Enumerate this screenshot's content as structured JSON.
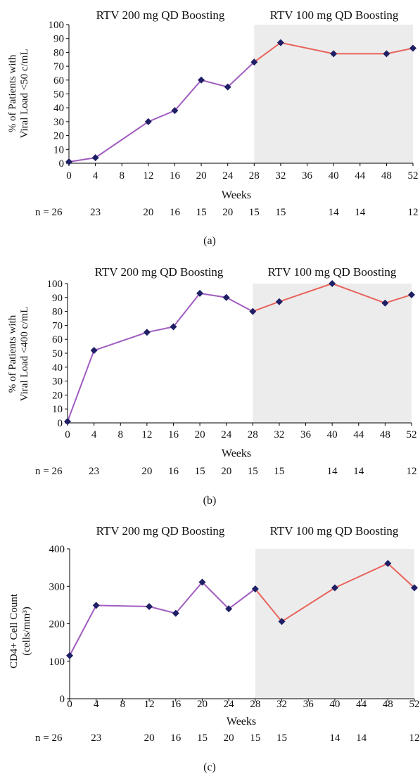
{
  "phases": {
    "first": "RTV 200 mg QD Boosting",
    "second": "RTV 100 mg QD Boosting"
  },
  "colors": {
    "phase1_line": "#a05cc0",
    "phase2_line": "#e8645c",
    "marker": "#1f1f66",
    "shade": "#ececec"
  },
  "n_label": "n = 26",
  "n_counts": [
    {
      "week": 4,
      "n": "23"
    },
    {
      "week": 12,
      "n": "20"
    },
    {
      "week": 16,
      "n": "16"
    },
    {
      "week": 20,
      "n": "15"
    },
    {
      "week": 24,
      "n": "20"
    },
    {
      "week": 28,
      "n": "15"
    },
    {
      "week": 32,
      "n": "15"
    },
    {
      "week": 40,
      "n": "14"
    },
    {
      "week": 44,
      "n": "14"
    },
    {
      "week": 52,
      "n": "12"
    }
  ],
  "chart_data": [
    {
      "type": "line",
      "panel_label": "(a)",
      "xlabel": "Weeks",
      "ylabel_lines": [
        "% of Patients with",
        "Viral Load <50 c/mL"
      ],
      "xlim": [
        0,
        52
      ],
      "ylim": [
        0,
        100
      ],
      "xticks": [
        0,
        4,
        8,
        12,
        16,
        20,
        24,
        28,
        32,
        36,
        40,
        44,
        48,
        52
      ],
      "yticks": [
        0,
        10,
        20,
        30,
        40,
        50,
        60,
        70,
        80,
        90,
        100
      ],
      "shaded_x_range": [
        28,
        52
      ],
      "series": [
        {
          "x": [
            0,
            4,
            12,
            16,
            20,
            24,
            28,
            32,
            40,
            48,
            52
          ],
          "y": [
            1,
            4,
            30,
            38,
            60,
            55,
            73,
            87,
            79,
            79,
            83
          ]
        }
      ]
    },
    {
      "type": "line",
      "panel_label": "(b)",
      "xlabel": "Weeks",
      "ylabel_lines": [
        "% of Patients with",
        "Viral Load <400 c/mL"
      ],
      "xlim": [
        0,
        52
      ],
      "ylim": [
        0,
        100
      ],
      "xticks": [
        0,
        4,
        8,
        12,
        16,
        20,
        24,
        28,
        32,
        36,
        40,
        44,
        48,
        52
      ],
      "yticks": [
        0,
        10,
        20,
        30,
        40,
        50,
        60,
        70,
        80,
        90,
        100
      ],
      "shaded_x_range": [
        28,
        52
      ],
      "series": [
        {
          "x": [
            0,
            4,
            12,
            16,
            20,
            24,
            28,
            32,
            40,
            48,
            52
          ],
          "y": [
            1,
            52,
            65,
            69,
            93,
            90,
            80,
            87,
            100,
            86,
            92
          ]
        }
      ]
    },
    {
      "type": "line",
      "panel_label": "(c)",
      "xlabel": "Weeks",
      "ylabel_lines": [
        "CD4+ Cell Count",
        "(cells/mm³)"
      ],
      "xlim": [
        0,
        52
      ],
      "ylim": [
        0,
        400
      ],
      "xticks": [
        0,
        4,
        8,
        12,
        16,
        20,
        24,
        28,
        32,
        36,
        40,
        44,
        48,
        52
      ],
      "yticks": [
        0,
        100,
        200,
        300,
        400
      ],
      "shaded_x_range": [
        28,
        52
      ],
      "series": [
        {
          "x": [
            0,
            4,
            12,
            16,
            20,
            24,
            28,
            32,
            40,
            48,
            52
          ],
          "y": [
            115,
            249,
            246,
            228,
            311,
            240,
            293,
            206,
            296,
            361,
            296
          ]
        }
      ]
    }
  ]
}
